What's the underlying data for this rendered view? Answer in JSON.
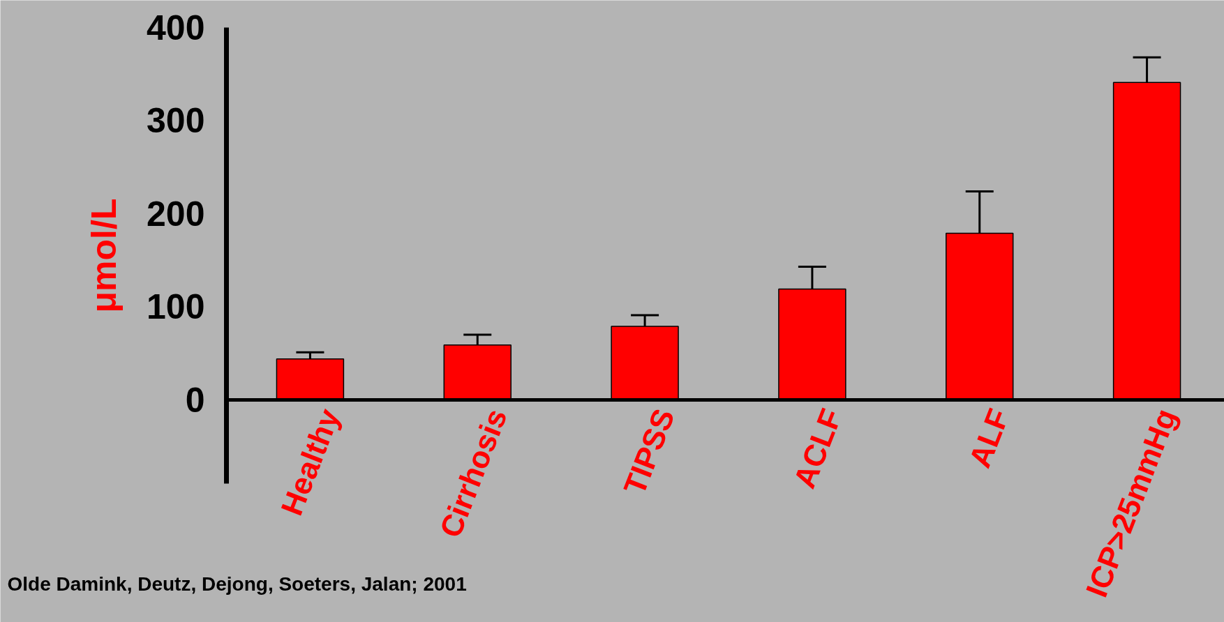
{
  "chart_data": {
    "type": "bar",
    "ylabel": "μmol/L",
    "categories": [
      "Healthy",
      "Cirrhosis",
      "TIPSS",
      "ACLF",
      "ALF",
      "ICP>25mmHg"
    ],
    "values": [
      44,
      59,
      79,
      119,
      179,
      341
    ],
    "errors": [
      [
        44,
        51
      ],
      [
        59,
        70
      ],
      [
        79,
        91
      ],
      [
        119,
        143
      ],
      [
        179,
        224
      ],
      [
        341,
        368
      ]
    ],
    "color": "#ff0000",
    "ylim": [
      -90,
      400
    ],
    "yticks": [
      0,
      100,
      200,
      300,
      400
    ],
    "grid": false,
    "annotations": [
      "Olde Damink, Deutz, Dejong, Soeters, Jalan; 2001"
    ]
  }
}
